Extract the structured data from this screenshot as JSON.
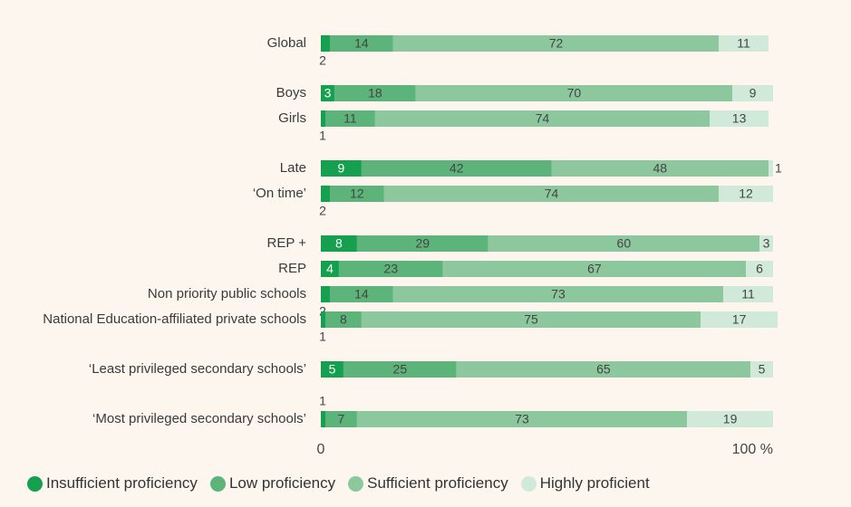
{
  "chart_data": {
    "type": "stacked-bar",
    "orientation": "horizontal",
    "categories": [
      "Global",
      "Boys",
      "Girls",
      "Late",
      "‘On time’",
      "REP +",
      "REP",
      "Non priority public schools",
      "National Education-affiliated private schools",
      "‘Least privileged secondary schools’",
      "‘Most privileged secondary schools’"
    ],
    "series": [
      {
        "name": "Insufficient proficiency",
        "color": "#14a04f",
        "values": [
          2,
          3,
          1,
          9,
          2,
          8,
          4,
          2,
          1,
          5,
          1
        ]
      },
      {
        "name": "Low proficiency",
        "color": "#5cb47b",
        "values": [
          14,
          18,
          11,
          42,
          12,
          29,
          23,
          14,
          8,
          25,
          7
        ]
      },
      {
        "name": "Sufficient proficiency",
        "color": "#8dc79e",
        "values": [
          72,
          70,
          74,
          48,
          74,
          60,
          67,
          73,
          75,
          65,
          73
        ]
      },
      {
        "name": "Highly proficient",
        "color": "#d0e9d8",
        "values": [
          11,
          9,
          13,
          1,
          12,
          3,
          6,
          11,
          17,
          5,
          19
        ]
      }
    ],
    "xlim": [
      0,
      100
    ],
    "xticks": [
      0,
      {
        "value": 100,
        "label": "100 %"
      }
    ],
    "legend": "bottom"
  }
}
